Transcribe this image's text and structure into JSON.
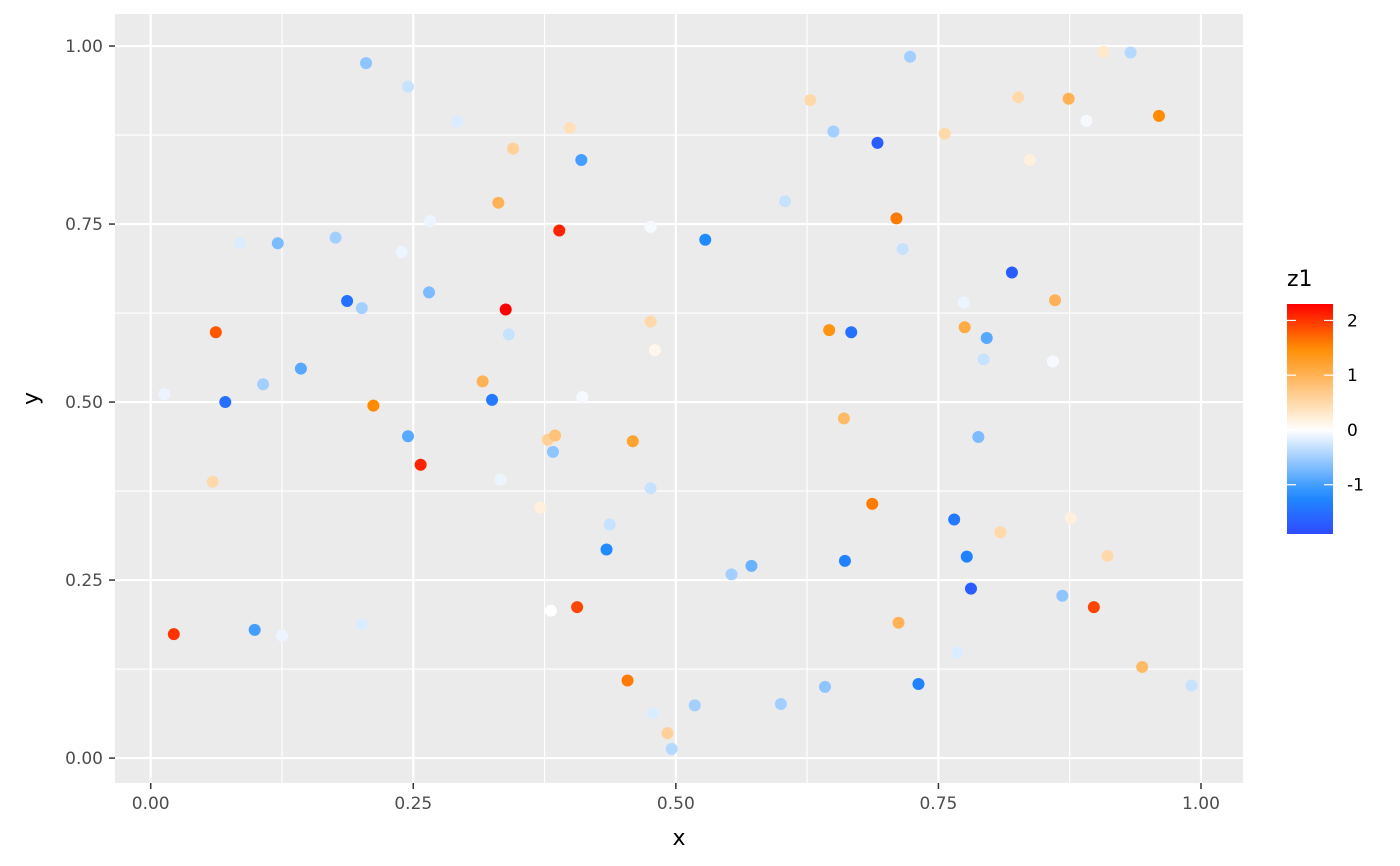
{
  "chart_data": {
    "type": "scatter",
    "xlabel": "x",
    "ylabel": "y",
    "xlim": [
      -0.034,
      1.04
    ],
    "ylim": [
      -0.035,
      1.045
    ],
    "x_ticks": [
      0,
      0.25,
      0.5,
      0.75,
      1.0
    ],
    "x_tick_labels": [
      "0.00",
      "0.25",
      "0.50",
      "0.75",
      "1.00"
    ],
    "y_ticks": [
      0,
      0.25,
      0.5,
      0.75,
      1.0
    ],
    "y_tick_labels": [
      "0.00",
      "0.25",
      "0.50",
      "0.75",
      "1.00"
    ],
    "grid": true,
    "legend": {
      "title": "z1",
      "position": "right",
      "range": [
        -1.9,
        2.3
      ],
      "ticks": [
        2,
        1,
        0,
        -1
      ],
      "tick_labels": [
        "2",
        "1",
        "0",
        "-1"
      ]
    },
    "color_scale": {
      "low": "#2e4bff",
      "mid_low": "#1f8bff",
      "mid": "#ffffff",
      "mid_high": "#ff8c00",
      "high": "#ff0000"
    },
    "background": "#ebebeb",
    "points": [
      {
        "x": 0.205,
        "y": 0.976,
        "z": -0.6
      },
      {
        "x": 0.245,
        "y": 0.943,
        "z": -0.3
      },
      {
        "x": 0.292,
        "y": 0.894,
        "z": -0.2
      },
      {
        "x": 0.399,
        "y": 0.885,
        "z": 0.4
      },
      {
        "x": 0.345,
        "y": 0.856,
        "z": 0.6
      },
      {
        "x": 0.41,
        "y": 0.84,
        "z": -1.0
      },
      {
        "x": 0.331,
        "y": 0.78,
        "z": 1.0
      },
      {
        "x": 0.389,
        "y": 0.741,
        "z": 2.1
      },
      {
        "x": 0.266,
        "y": 0.754,
        "z": -0.1
      },
      {
        "x": 0.085,
        "y": 0.723,
        "z": -0.2
      },
      {
        "x": 0.121,
        "y": 0.723,
        "z": -0.7
      },
      {
        "x": 0.176,
        "y": 0.731,
        "z": -0.5
      },
      {
        "x": 0.239,
        "y": 0.711,
        "z": -0.1
      },
      {
        "x": 0.187,
        "y": 0.642,
        "z": -1.5
      },
      {
        "x": 0.201,
        "y": 0.632,
        "z": -0.5
      },
      {
        "x": 0.265,
        "y": 0.654,
        "z": -0.7
      },
      {
        "x": 0.338,
        "y": 0.63,
        "z": 2.3
      },
      {
        "x": 0.341,
        "y": 0.595,
        "z": -0.3
      },
      {
        "x": 0.062,
        "y": 0.598,
        "z": 1.8
      },
      {
        "x": 0.013,
        "y": 0.511,
        "z": -0.1
      },
      {
        "x": 0.071,
        "y": 0.5,
        "z": -1.5
      },
      {
        "x": 0.107,
        "y": 0.525,
        "z": -0.5
      },
      {
        "x": 0.143,
        "y": 0.547,
        "z": -0.9
      },
      {
        "x": 0.212,
        "y": 0.495,
        "z": 1.5
      },
      {
        "x": 0.316,
        "y": 0.529,
        "z": 1.0
      },
      {
        "x": 0.325,
        "y": 0.503,
        "z": -1.4
      },
      {
        "x": 0.411,
        "y": 0.507,
        "z": -0.05
      },
      {
        "x": 0.245,
        "y": 0.452,
        "z": -0.9
      },
      {
        "x": 0.257,
        "y": 0.412,
        "z": 2.1
      },
      {
        "x": 0.378,
        "y": 0.447,
        "z": 0.6
      },
      {
        "x": 0.385,
        "y": 0.453,
        "z": 0.8
      },
      {
        "x": 0.383,
        "y": 0.43,
        "z": -0.6
      },
      {
        "x": 0.059,
        "y": 0.388,
        "z": 0.5
      },
      {
        "x": 0.333,
        "y": 0.391,
        "z": -0.1
      },
      {
        "x": 0.371,
        "y": 0.352,
        "z": 0.2
      },
      {
        "x": 0.437,
        "y": 0.328,
        "z": -0.3
      },
      {
        "x": 0.434,
        "y": 0.293,
        "z": -1.2
      },
      {
        "x": 0.476,
        "y": 0.746,
        "z": -0.05
      },
      {
        "x": 0.476,
        "y": 0.613,
        "z": 0.5
      },
      {
        "x": 0.48,
        "y": 0.573,
        "z": 0.1
      },
      {
        "x": 0.459,
        "y": 0.445,
        "z": 1.2
      },
      {
        "x": 0.476,
        "y": 0.379,
        "z": -0.3
      },
      {
        "x": 0.381,
        "y": 0.207,
        "z": 0.0
      },
      {
        "x": 0.406,
        "y": 0.212,
        "z": 1.9
      },
      {
        "x": 0.454,
        "y": 0.109,
        "z": 1.6
      },
      {
        "x": 0.478,
        "y": 0.063,
        "z": -0.2
      },
      {
        "x": 0.492,
        "y": 0.035,
        "z": 0.6
      },
      {
        "x": 0.496,
        "y": 0.013,
        "z": -0.4
      },
      {
        "x": 0.518,
        "y": 0.074,
        "z": -0.5
      },
      {
        "x": 0.553,
        "y": 0.258,
        "z": -0.5
      },
      {
        "x": 0.572,
        "y": 0.27,
        "z": -0.8
      },
      {
        "x": 0.6,
        "y": 0.076,
        "z": -0.5
      },
      {
        "x": 0.642,
        "y": 0.1,
        "z": -0.6
      },
      {
        "x": 0.528,
        "y": 0.728,
        "z": -1.2
      },
      {
        "x": 0.604,
        "y": 0.782,
        "z": -0.3
      },
      {
        "x": 0.628,
        "y": 0.924,
        "z": 0.5
      },
      {
        "x": 0.65,
        "y": 0.88,
        "z": -0.5
      },
      {
        "x": 0.692,
        "y": 0.864,
        "z": -1.7
      },
      {
        "x": 0.723,
        "y": 0.985,
        "z": -0.5
      },
      {
        "x": 0.71,
        "y": 0.758,
        "z": 1.6
      },
      {
        "x": 0.716,
        "y": 0.715,
        "z": -0.3
      },
      {
        "x": 0.646,
        "y": 0.601,
        "z": 1.4
      },
      {
        "x": 0.667,
        "y": 0.598,
        "z": -1.5
      },
      {
        "x": 0.66,
        "y": 0.477,
        "z": 0.9
      },
      {
        "x": 0.687,
        "y": 0.357,
        "z": 1.6
      },
      {
        "x": 0.661,
        "y": 0.277,
        "z": -1.3
      },
      {
        "x": 0.712,
        "y": 0.19,
        "z": 1.0
      },
      {
        "x": 0.731,
        "y": 0.104,
        "z": -1.3
      },
      {
        "x": 0.756,
        "y": 0.877,
        "z": 0.5
      },
      {
        "x": 0.826,
        "y": 0.928,
        "z": 0.5
      },
      {
        "x": 0.837,
        "y": 0.84,
        "z": 0.2
      },
      {
        "x": 0.874,
        "y": 0.926,
        "z": 1.0
      },
      {
        "x": 0.891,
        "y": 0.895,
        "z": -0.05
      },
      {
        "x": 0.907,
        "y": 0.992,
        "z": 0.3
      },
      {
        "x": 0.933,
        "y": 0.991,
        "z": -0.4
      },
      {
        "x": 0.96,
        "y": 0.902,
        "z": 1.5
      },
      {
        "x": 0.82,
        "y": 0.682,
        "z": -1.7
      },
      {
        "x": 0.774,
        "y": 0.64,
        "z": -0.1
      },
      {
        "x": 0.775,
        "y": 0.605,
        "z": 1.1
      },
      {
        "x": 0.796,
        "y": 0.59,
        "z": -0.9
      },
      {
        "x": 0.793,
        "y": 0.56,
        "z": -0.3
      },
      {
        "x": 0.861,
        "y": 0.643,
        "z": 1.0
      },
      {
        "x": 0.859,
        "y": 0.557,
        "z": -0.05
      },
      {
        "x": 0.788,
        "y": 0.451,
        "z": -0.7
      },
      {
        "x": 0.765,
        "y": 0.335,
        "z": -1.4
      },
      {
        "x": 0.809,
        "y": 0.317,
        "z": 0.5
      },
      {
        "x": 0.876,
        "y": 0.337,
        "z": 0.2
      },
      {
        "x": 0.777,
        "y": 0.283,
        "z": -1.3
      },
      {
        "x": 0.781,
        "y": 0.238,
        "z": -1.7
      },
      {
        "x": 0.768,
        "y": 0.148,
        "z": -0.2
      },
      {
        "x": 0.868,
        "y": 0.228,
        "z": -0.6
      },
      {
        "x": 0.898,
        "y": 0.212,
        "z": 1.9
      },
      {
        "x": 0.911,
        "y": 0.284,
        "z": 0.5
      },
      {
        "x": 0.944,
        "y": 0.128,
        "z": 0.9
      },
      {
        "x": 0.991,
        "y": 0.102,
        "z": -0.3
      },
      {
        "x": 0.022,
        "y": 0.174,
        "z": 2.0
      },
      {
        "x": 0.099,
        "y": 0.18,
        "z": -1.0
      },
      {
        "x": 0.125,
        "y": 0.172,
        "z": -0.1
      },
      {
        "x": 0.201,
        "y": 0.188,
        "z": -0.2
      }
    ]
  }
}
